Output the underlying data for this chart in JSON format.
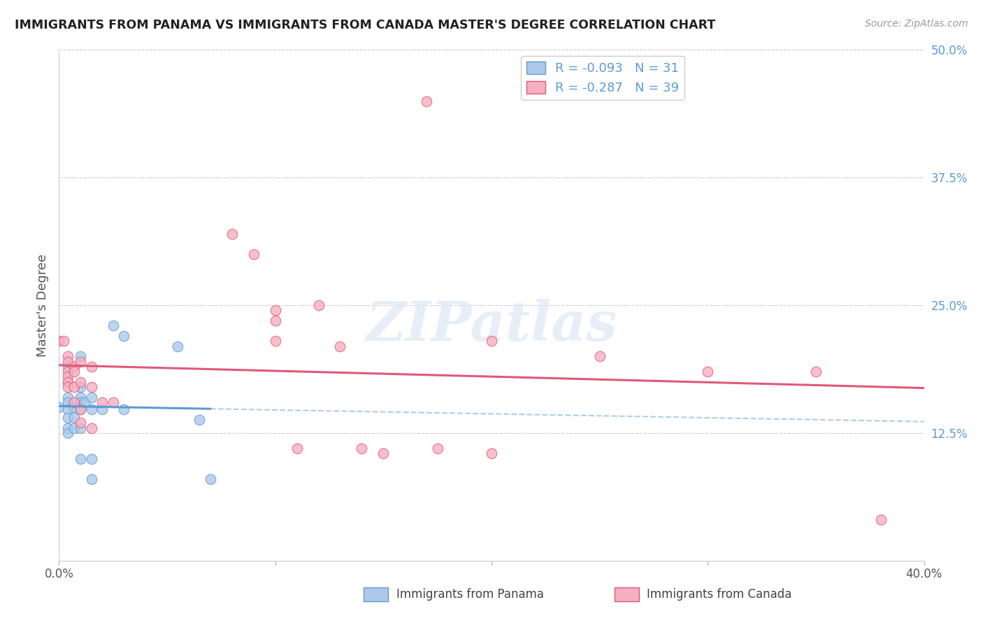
{
  "title": "IMMIGRANTS FROM PANAMA VS IMMIGRANTS FROM CANADA MASTER'S DEGREE CORRELATION CHART",
  "source": "Source: ZipAtlas.com",
  "ylabel": "Master's Degree",
  "xlim": [
    0.0,
    0.4
  ],
  "ylim": [
    0.0,
    0.5
  ],
  "ytick_labels": [
    "12.5%",
    "25.0%",
    "37.5%",
    "50.0%"
  ],
  "ytick_positions": [
    0.125,
    0.25,
    0.375,
    0.5
  ],
  "blue_R": -0.093,
  "blue_N": 31,
  "pink_R": -0.287,
  "pink_N": 39,
  "blue_color": "#adc8e8",
  "pink_color": "#f5afc0",
  "blue_line_color": "#5b9bd5",
  "pink_line_color": "#e05878",
  "blue_scatter": [
    [
      0.0,
      0.15
    ],
    [
      0.004,
      0.19
    ],
    [
      0.004,
      0.175
    ],
    [
      0.004,
      0.16
    ],
    [
      0.004,
      0.155
    ],
    [
      0.004,
      0.148
    ],
    [
      0.004,
      0.14
    ],
    [
      0.004,
      0.13
    ],
    [
      0.004,
      0.125
    ],
    [
      0.007,
      0.15
    ],
    [
      0.007,
      0.14
    ],
    [
      0.007,
      0.13
    ],
    [
      0.01,
      0.2
    ],
    [
      0.01,
      0.17
    ],
    [
      0.01,
      0.16
    ],
    [
      0.01,
      0.155
    ],
    [
      0.01,
      0.148
    ],
    [
      0.01,
      0.13
    ],
    [
      0.01,
      0.1
    ],
    [
      0.012,
      0.155
    ],
    [
      0.015,
      0.16
    ],
    [
      0.015,
      0.148
    ],
    [
      0.015,
      0.1
    ],
    [
      0.015,
      0.08
    ],
    [
      0.02,
      0.148
    ],
    [
      0.025,
      0.23
    ],
    [
      0.03,
      0.22
    ],
    [
      0.03,
      0.148
    ],
    [
      0.055,
      0.21
    ],
    [
      0.065,
      0.138
    ],
    [
      0.07,
      0.08
    ]
  ],
  "pink_scatter": [
    [
      0.0,
      0.215
    ],
    [
      0.002,
      0.215
    ],
    [
      0.004,
      0.2
    ],
    [
      0.004,
      0.195
    ],
    [
      0.004,
      0.185
    ],
    [
      0.004,
      0.18
    ],
    [
      0.004,
      0.175
    ],
    [
      0.004,
      0.17
    ],
    [
      0.007,
      0.19
    ],
    [
      0.007,
      0.185
    ],
    [
      0.007,
      0.17
    ],
    [
      0.007,
      0.155
    ],
    [
      0.01,
      0.195
    ],
    [
      0.01,
      0.175
    ],
    [
      0.01,
      0.148
    ],
    [
      0.01,
      0.135
    ],
    [
      0.015,
      0.19
    ],
    [
      0.015,
      0.17
    ],
    [
      0.015,
      0.13
    ],
    [
      0.02,
      0.155
    ],
    [
      0.025,
      0.155
    ],
    [
      0.08,
      0.32
    ],
    [
      0.09,
      0.3
    ],
    [
      0.1,
      0.245
    ],
    [
      0.1,
      0.235
    ],
    [
      0.1,
      0.215
    ],
    [
      0.11,
      0.11
    ],
    [
      0.12,
      0.25
    ],
    [
      0.13,
      0.21
    ],
    [
      0.14,
      0.11
    ],
    [
      0.15,
      0.105
    ],
    [
      0.17,
      0.45
    ],
    [
      0.175,
      0.11
    ],
    [
      0.2,
      0.215
    ],
    [
      0.2,
      0.105
    ],
    [
      0.25,
      0.2
    ],
    [
      0.3,
      0.185
    ],
    [
      0.35,
      0.185
    ],
    [
      0.38,
      0.04
    ]
  ],
  "watermark": "ZIPatlas",
  "background_color": "#ffffff",
  "grid_color": "#cccccc"
}
